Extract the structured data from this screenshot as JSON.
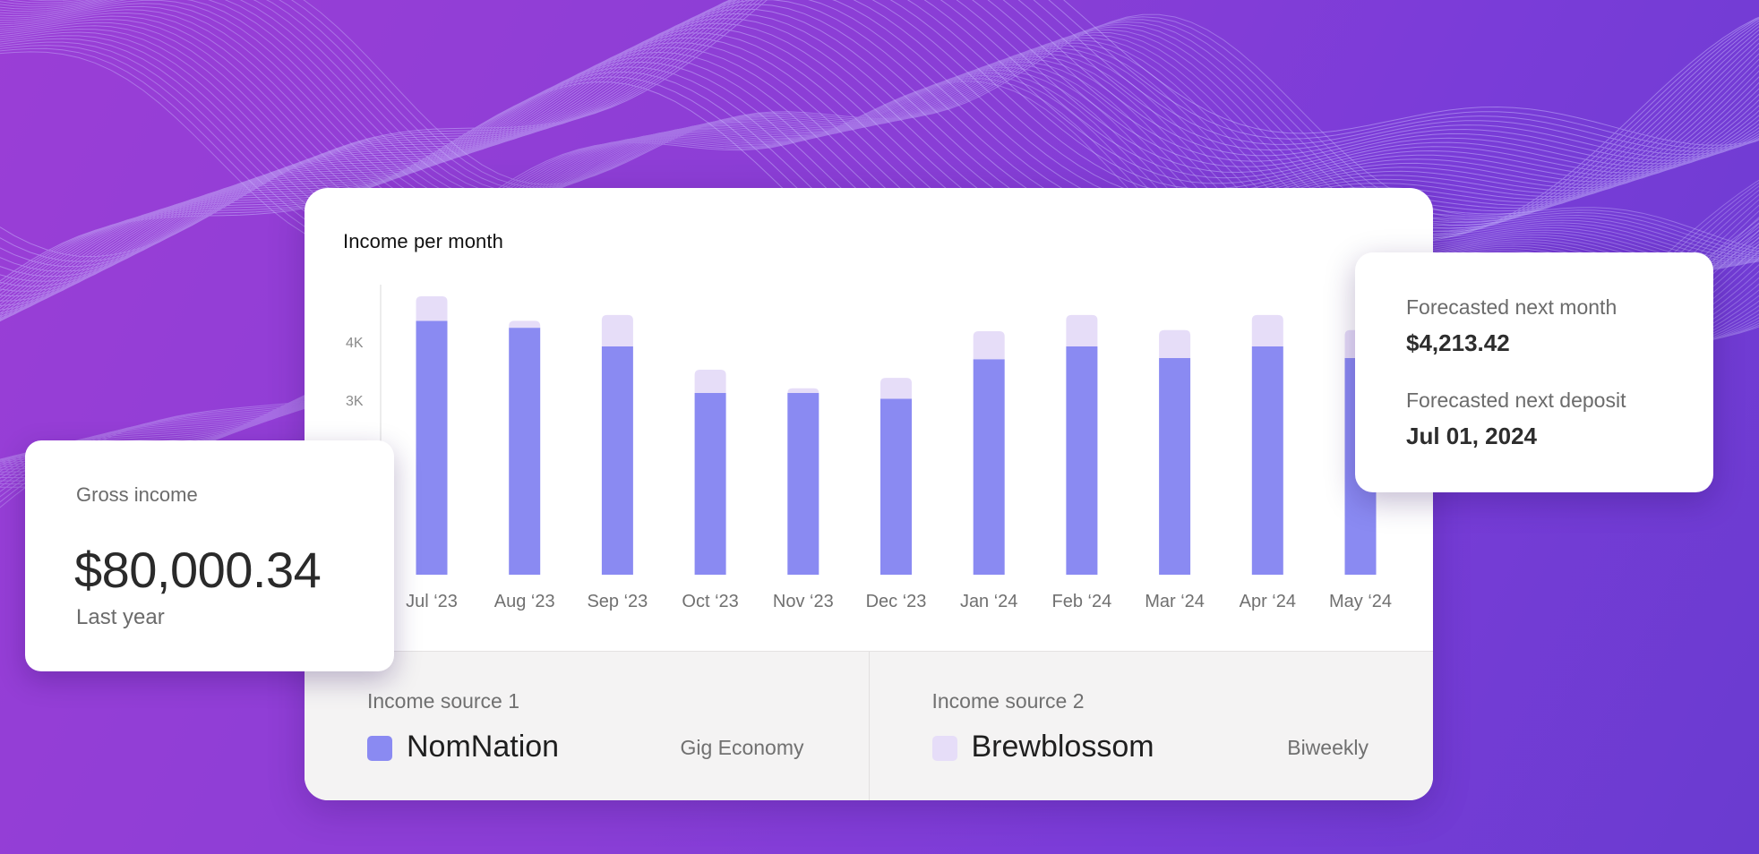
{
  "colors": {
    "primary_series": "#8a8af2",
    "secondary_series": "#e6ddf8",
    "axis": "#e6e6e6"
  },
  "chart_data": {
    "type": "bar",
    "stacked": true,
    "title": "Income per month",
    "categories": [
      "Jul ‘23",
      "Aug ‘23",
      "Sep ‘23",
      "Oct ‘23",
      "Nov ‘23",
      "Dec ‘23",
      "Jan ‘24",
      "Feb ‘24",
      "Mar ‘24",
      "Apr ‘24",
      "May ‘24"
    ],
    "series": [
      {
        "name": "NomNation",
        "values": [
          4360,
          4240,
          3920,
          3120,
          3120,
          3020,
          3700,
          3920,
          3720,
          3920,
          3720
        ]
      },
      {
        "name": "Brewblossom",
        "values": [
          420,
          120,
          540,
          400,
          80,
          360,
          480,
          540,
          480,
          540,
          480
        ]
      }
    ],
    "y_ticks": [
      3000,
      4000
    ],
    "y_tick_labels": [
      "3K",
      "4K"
    ],
    "ylim": [
      0,
      4960
    ],
    "xlabel": "",
    "ylabel": ""
  },
  "gross": {
    "label": "Gross income",
    "value": "$80,000.34",
    "sub": "Last year"
  },
  "forecast": {
    "month_label": "Forecasted next month",
    "month_value": "$4,213.42",
    "deposit_label": "Forecasted next deposit",
    "deposit_value": "Jul 01, 2024"
  },
  "sources": [
    {
      "label": "Income source 1",
      "name": "NomNation",
      "tag": "Gig Economy",
      "color": "#8a8af2"
    },
    {
      "label": "Income source 2",
      "name": "Brewblossom",
      "tag": "Biweekly",
      "color": "#e6ddf8"
    }
  ]
}
